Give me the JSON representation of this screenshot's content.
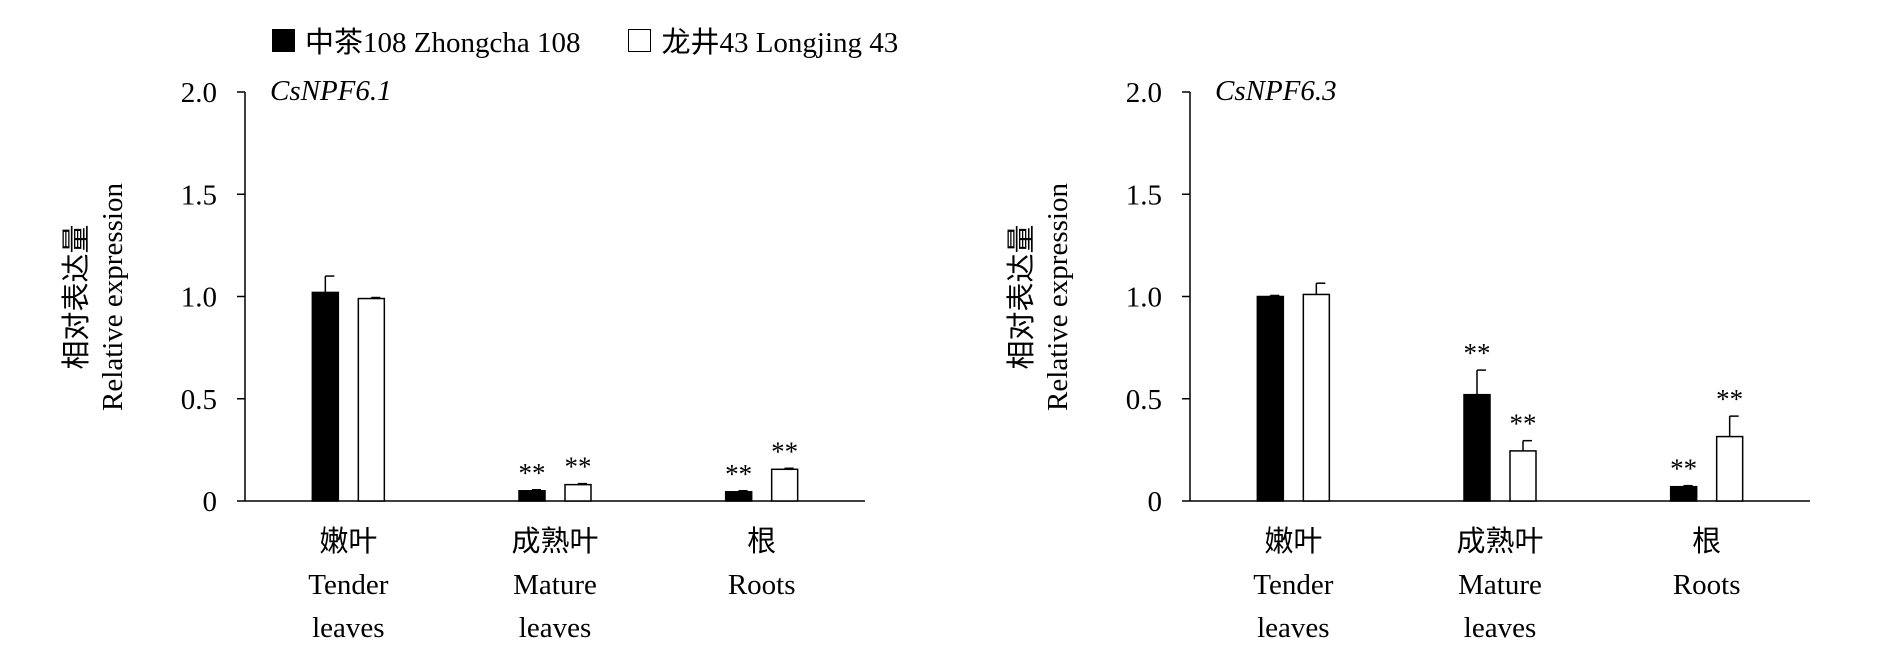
{
  "legend": [
    {
      "label": "中茶108 Zhongcha 108",
      "color": "#000000"
    },
    {
      "label": "龙井43 Longjing 43",
      "color": "#ffffff"
    }
  ],
  "chart_data": [
    {
      "type": "bar",
      "title": "CsNPF6.1",
      "ylabel": [
        "相对表达量",
        "Relative expression"
      ],
      "ylim": [
        0,
        2.0
      ],
      "yticks": [
        "0",
        "0.5",
        "1.0",
        "1.5",
        "2.0"
      ],
      "categories": [
        [
          "嫩叶",
          "Tender",
          "leaves"
        ],
        [
          "成熟叶",
          "Mature",
          "leaves"
        ],
        [
          "根",
          "Roots"
        ]
      ],
      "series": [
        {
          "name": "中茶108 Zhongcha 108",
          "values": [
            1.02,
            0.05,
            0.045
          ],
          "errors": [
            0.08,
            0.005,
            0.005
          ],
          "color": "#000000"
        },
        {
          "name": "龙井43 Longjing 43",
          "values": [
            0.99,
            0.08,
            0.155
          ],
          "errors": [
            0.005,
            0.005,
            0.005
          ],
          "color": "#ffffff"
        }
      ],
      "annotations": [
        [
          "",
          ""
        ],
        [
          "**",
          "**"
        ],
        [
          "**",
          "**"
        ]
      ],
      "grid": false
    },
    {
      "type": "bar",
      "title": "CsNPF6.3",
      "ylabel": [
        "相对表达量",
        "Relative expression"
      ],
      "ylim": [
        0,
        2.0
      ],
      "yticks": [
        "0",
        "0.5",
        "1.0",
        "1.5",
        "2.0"
      ],
      "categories": [
        [
          "嫩叶",
          "Tender",
          "leaves"
        ],
        [
          "成熟叶",
          "Mature",
          "leaves"
        ],
        [
          "根",
          "Roots"
        ]
      ],
      "series": [
        {
          "name": "中茶108 Zhongcha 108",
          "values": [
            1.0,
            0.52,
            0.07
          ],
          "errors": [
            0.005,
            0.12,
            0.005
          ],
          "color": "#000000"
        },
        {
          "name": "龙井43 Longjing 43",
          "values": [
            1.01,
            0.245,
            0.315
          ],
          "errors": [
            0.055,
            0.05,
            0.1
          ],
          "color": "#ffffff"
        }
      ],
      "annotations": [
        [
          "",
          ""
        ],
        [
          "**",
          "**"
        ],
        [
          "**",
          "**"
        ]
      ],
      "grid": false
    }
  ]
}
